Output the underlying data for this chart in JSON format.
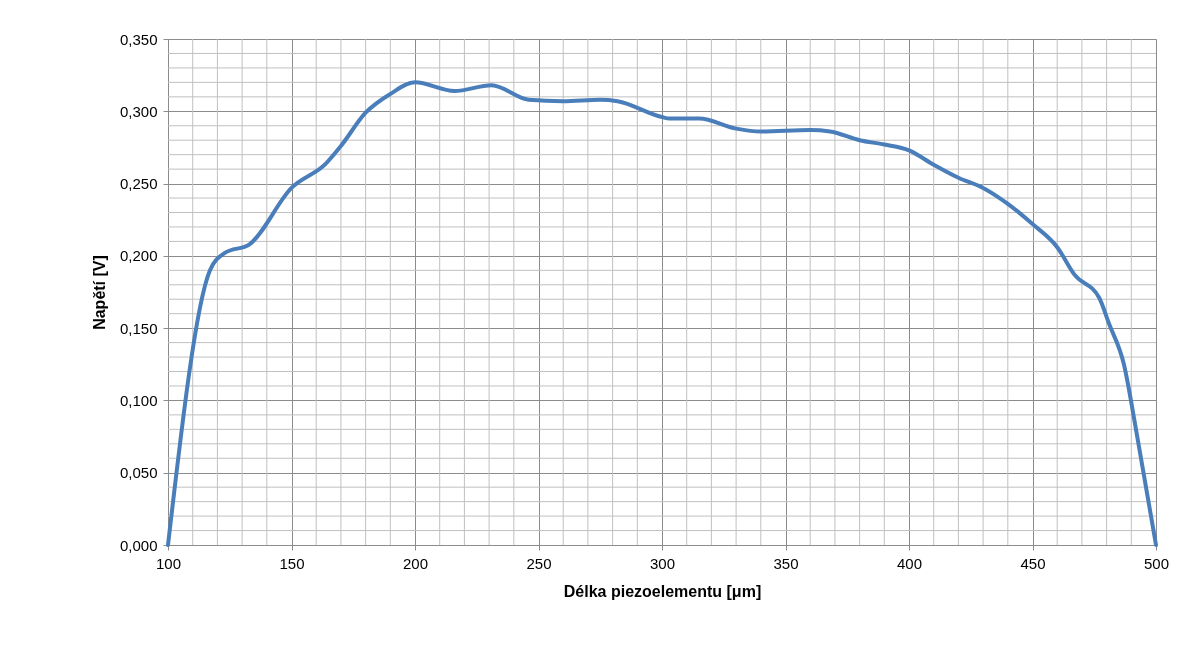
{
  "chart_data": {
    "type": "line",
    "xlabel": "Délka piezoelementu [μm]",
    "ylabel": "Napětí [V]",
    "x": [
      100,
      117,
      123,
      133,
      150,
      164,
      170,
      180,
      190,
      200,
      216,
      231,
      246,
      260,
      275,
      282,
      300,
      303,
      315,
      330,
      340,
      360,
      368,
      380,
      390,
      400,
      410,
      420,
      430,
      440,
      450,
      460,
      467,
      477,
      481,
      487,
      492,
      500
    ],
    "series": [
      {
        "color": "#4a7ebb",
        "values": [
          0.0,
          0.19,
          0.202,
          0.208,
          0.247,
          0.264,
          0.276,
          0.299,
          0.312,
          0.32,
          0.314,
          0.318,
          0.308,
          0.307,
          0.308,
          0.307,
          0.296,
          0.295,
          0.295,
          0.288,
          0.286,
          0.287,
          0.286,
          0.28,
          0.277,
          0.273,
          0.263,
          0.254,
          0.247,
          0.236,
          0.222,
          0.206,
          0.187,
          0.171,
          0.153,
          0.125,
          0.079,
          0.0
        ]
      }
    ],
    "xlim": [
      100,
      500
    ],
    "ylim": [
      0,
      0.35
    ],
    "xticks": [
      100,
      {
        "value": 110,
        "label": null
      },
      {
        "value": 120,
        "label": null
      },
      {
        "value": 130,
        "label": null
      },
      {
        "value": 140,
        "label": null
      },
      150,
      {
        "value": 160,
        "label": null
      },
      {
        "value": 170,
        "label": null
      },
      {
        "value": 180,
        "label": null
      },
      {
        "value": 190,
        "label": null
      },
      200,
      {
        "value": 210,
        "label": null
      },
      {
        "value": 220,
        "label": null
      },
      {
        "value": 230,
        "label": null
      },
      {
        "value": 240,
        "label": null
      },
      250,
      {
        "value": 260,
        "label": null
      },
      {
        "value": 270,
        "label": null
      },
      {
        "value": 280,
        "label": null
      },
      {
        "value": 290,
        "label": null
      },
      300,
      {
        "value": 310,
        "label": null
      },
      {
        "value": 320,
        "label": null
      },
      {
        "value": 330,
        "label": null
      },
      {
        "value": 340,
        "label": null
      },
      350,
      {
        "value": 360,
        "label": null
      },
      {
        "value": 370,
        "label": null
      },
      {
        "value": 380,
        "label": null
      },
      {
        "value": 390,
        "label": null
      },
      400,
      {
        "value": 410,
        "label": null
      },
      {
        "value": 420,
        "label": null
      },
      {
        "value": 430,
        "label": null
      },
      {
        "value": 440,
        "label": null
      },
      450,
      {
        "value": 460,
        "label": null
      },
      {
        "value": 470,
        "label": null
      },
      {
        "value": 480,
        "label": null
      },
      {
        "value": 490,
        "label": null
      },
      500
    ],
    "yticks": [
      {
        "value": 0,
        "label": "0,000"
      },
      {
        "value": 0.01,
        "label": null
      },
      {
        "value": 0.02,
        "label": null
      },
      {
        "value": 0.03,
        "label": null
      },
      {
        "value": 0.04,
        "label": null
      },
      {
        "value": 0.05,
        "label": "0,050"
      },
      {
        "value": 0.06,
        "label": null
      },
      {
        "value": 0.07,
        "label": null
      },
      {
        "value": 0.08,
        "label": null
      },
      {
        "value": 0.09,
        "label": null
      },
      {
        "value": 0.1,
        "label": "0,100"
      },
      {
        "value": 0.11,
        "label": null
      },
      {
        "value": 0.12,
        "label": null
      },
      {
        "value": 0.13,
        "label": null
      },
      {
        "value": 0.14,
        "label": null
      },
      {
        "value": 0.15,
        "label": "0,150"
      },
      {
        "value": 0.16,
        "label": null
      },
      {
        "value": 0.17,
        "label": null
      },
      {
        "value": 0.18,
        "label": null
      },
      {
        "value": 0.19,
        "label": null
      },
      {
        "value": 0.2,
        "label": "0,200"
      },
      {
        "value": 0.21,
        "label": null
      },
      {
        "value": 0.22,
        "label": null
      },
      {
        "value": 0.23,
        "label": null
      },
      {
        "value": 0.24,
        "label": null
      },
      {
        "value": 0.25,
        "label": "0,250"
      },
      {
        "value": 0.26,
        "label": null
      },
      {
        "value": 0.27,
        "label": null
      },
      {
        "value": 0.28,
        "label": null
      },
      {
        "value": 0.29,
        "label": null
      },
      {
        "value": 0.3,
        "label": "0,300"
      },
      {
        "value": 0.31,
        "label": null
      },
      {
        "value": 0.32,
        "label": null
      },
      {
        "value": 0.33,
        "label": null
      },
      {
        "value": 0.34,
        "label": null
      },
      {
        "value": 0.35,
        "label": "0,350"
      }
    ],
    "grid": true,
    "marker": "none",
    "line_style": "solid"
  }
}
